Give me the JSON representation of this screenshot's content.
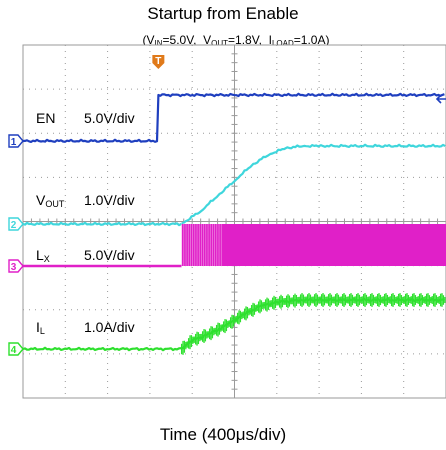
{
  "header": {
    "title": "Startup from Enable",
    "conditions": {
      "vin_label": "V",
      "vin_sub": "IN",
      "vin_value": "=5.0V,",
      "vout_label": "V",
      "vout_sub": "OUT",
      "vout_value": "=1.8V,",
      "iload_label": "I",
      "iload_sub": "LOAD",
      "iload_value": "=1.0A)"
    }
  },
  "footer": {
    "xlabel": "Time (400μs/div)"
  },
  "trigger": {
    "marker": "T"
  },
  "channels": [
    {
      "id": "1",
      "name": "EN",
      "name_sub": "",
      "scale": "5.0V/div",
      "color": "#1f3fbf"
    },
    {
      "id": "2",
      "name": "V",
      "name_sub": "OUT",
      "scale": "1.0V/div",
      "color": "#3fd6dc"
    },
    {
      "id": "3",
      "name": "L",
      "name_sub": "X",
      "scale": "5.0V/div",
      "color": "#e020c8"
    },
    {
      "id": "4",
      "name": "I",
      "name_sub": "L",
      "scale": "1.0A/div",
      "color": "#2ee02e"
    }
  ],
  "chart_data": {
    "type": "line",
    "title": "Startup from Enable",
    "xlabel": "Time (400μs/div)",
    "grid": true,
    "x_divisions": 10,
    "y_divisions": 8,
    "x_unit": "div",
    "series": [
      {
        "name": "EN",
        "scale": "5.0V/div",
        "x": [
          0,
          3.2,
          3.2,
          10
        ],
        "y": [
          0,
          0,
          5.0,
          5.0
        ]
      },
      {
        "name": "VOUT",
        "scale": "1.0V/div",
        "x": [
          0,
          3.75,
          4.2,
          4.6,
          5.0,
          5.4,
          5.8,
          6.2,
          6.6,
          7.0,
          10
        ],
        "y": [
          0,
          0,
          0.3,
          0.65,
          1.0,
          1.35,
          1.6,
          1.75,
          1.8,
          1.8,
          1.8
        ]
      },
      {
        "name": "LX",
        "scale": "5.0V/div",
        "x": [
          0,
          3.75,
          3.75,
          10
        ],
        "y": [
          0,
          0,
          5.0,
          5.0
        ],
        "switching_from": 3.75
      },
      {
        "name": "IL",
        "scale": "1.0A/div",
        "x": [
          0,
          3.75,
          4.0,
          4.4,
          4.8,
          5.2,
          5.6,
          6.0,
          6.6,
          10
        ],
        "y": [
          0,
          0,
          0.2,
          0.35,
          0.55,
          0.8,
          1.0,
          1.1,
          1.15,
          1.15
        ]
      }
    ]
  }
}
